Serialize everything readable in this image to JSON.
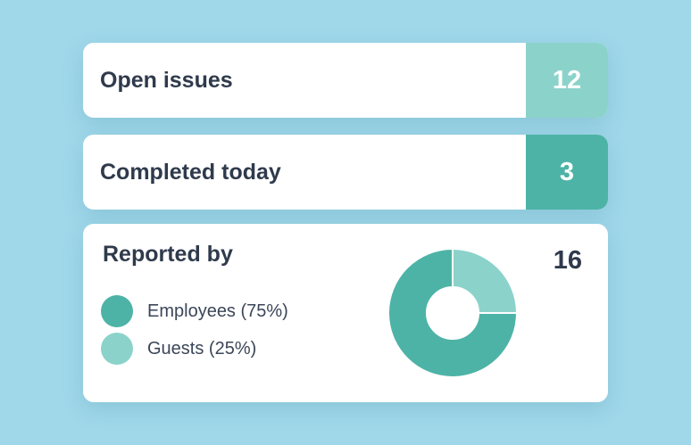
{
  "open_issues": {
    "label": "Open issues",
    "value": "12",
    "color": "#8bd3ca"
  },
  "completed_today": {
    "label": "Completed today",
    "value": "3",
    "color": "#4db3a6"
  },
  "reported_by": {
    "title": "Reported by",
    "total": "16",
    "legend": [
      {
        "label": "Employees (75%)",
        "color": "#4db3a6"
      },
      {
        "label": "Guests (25%)",
        "color": "#8bd3ca"
      }
    ]
  },
  "chart_data": {
    "type": "pie",
    "donut": true,
    "categories": [
      "Employees",
      "Guests"
    ],
    "values": [
      75,
      25
    ],
    "colors": [
      "#4db3a6",
      "#8bd3ca"
    ],
    "title": "Reported by"
  }
}
